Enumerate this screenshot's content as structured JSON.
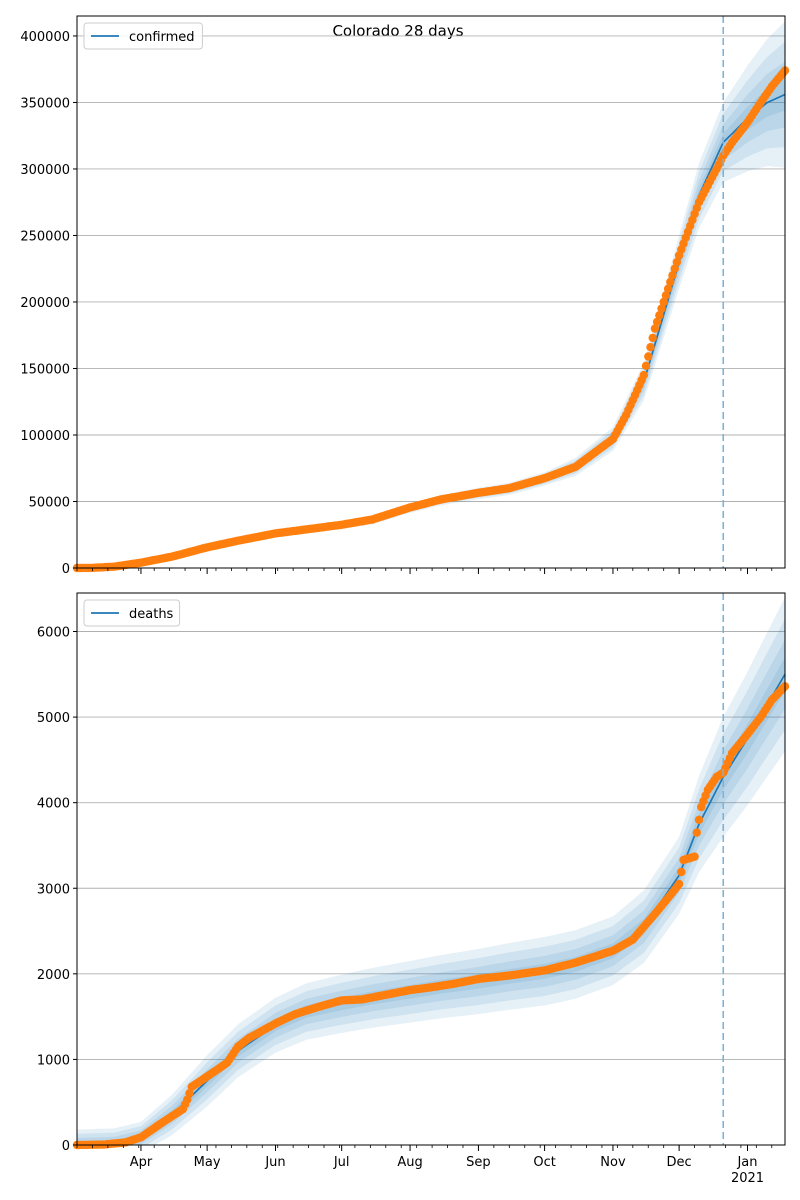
{
  "title": "Colorado 28 days",
  "colors": {
    "model_line": "#1f77b4",
    "observed_points": "#ff7f0e",
    "band": "#1f77b4",
    "forecast_marker": "#7fb3d5",
    "grid": "#b0b0b0"
  },
  "x_axis": {
    "month_labels": [
      "Apr",
      "May",
      "Jun",
      "Jul",
      "Aug",
      "Sep",
      "Oct",
      "Nov",
      "Dec",
      "Jan"
    ],
    "year_label": "2021"
  },
  "chart_data": [
    {
      "type": "line",
      "legend": "confirmed",
      "legend_position": "top-left",
      "grid": "y",
      "xlim": [
        "2020-03-03",
        "2021-01-18"
      ],
      "ylim": [
        0,
        415000
      ],
      "yticks": [
        0,
        50000,
        100000,
        150000,
        200000,
        250000,
        300000,
        350000,
        400000
      ],
      "forecast_start": "2020-12-21",
      "model_points": [
        [
          "2020-03-03",
          0
        ],
        [
          "2020-03-20",
          800
        ],
        [
          "2020-04-01",
          4500
        ],
        [
          "2020-04-15",
          9000
        ],
        [
          "2020-05-01",
          16000
        ],
        [
          "2020-05-15",
          21000
        ],
        [
          "2020-06-01",
          26000
        ],
        [
          "2020-06-15",
          29000
        ],
        [
          "2020-07-01",
          32500
        ],
        [
          "2020-07-15",
          36000
        ],
        [
          "2020-08-01",
          45000
        ],
        [
          "2020-08-15",
          51000
        ],
        [
          "2020-09-01",
          56000
        ],
        [
          "2020-09-15",
          59500
        ],
        [
          "2020-10-01",
          67000
        ],
        [
          "2020-10-15",
          76000
        ],
        [
          "2020-11-01",
          97000
        ],
        [
          "2020-11-15",
          140000
        ],
        [
          "2020-12-01",
          230000
        ],
        [
          "2020-12-10",
          280000
        ],
        [
          "2020-12-21",
          320000
        ],
        [
          "2021-01-01",
          338000
        ],
        [
          "2021-01-10",
          350000
        ],
        [
          "2021-01-18",
          356000
        ]
      ],
      "band_spread": [
        [
          "2020-03-03",
          600
        ],
        [
          "2020-04-01",
          1500
        ],
        [
          "2020-06-01",
          2500
        ],
        [
          "2020-08-01",
          3500
        ],
        [
          "2020-10-01",
          5000
        ],
        [
          "2020-11-01",
          9000
        ],
        [
          "2020-12-01",
          20000
        ],
        [
          "2020-12-21",
          30000
        ],
        [
          "2021-01-18",
          55000
        ]
      ],
      "observed": [
        [
          "2020-03-03",
          0
        ],
        [
          "2020-03-10",
          100
        ],
        [
          "2020-03-20",
          1000
        ],
        [
          "2020-04-01",
          4000
        ],
        [
          "2020-04-15",
          8500
        ],
        [
          "2020-05-01",
          15500
        ],
        [
          "2020-05-15",
          20500
        ],
        [
          "2020-06-01",
          26000
        ],
        [
          "2020-06-15",
          29000
        ],
        [
          "2020-07-01",
          32500
        ],
        [
          "2020-07-15",
          36500
        ],
        [
          "2020-08-01",
          45500
        ],
        [
          "2020-08-15",
          51500
        ],
        [
          "2020-09-01",
          56500
        ],
        [
          "2020-09-15",
          60000
        ],
        [
          "2020-10-01",
          67500
        ],
        [
          "2020-10-15",
          76000
        ],
        [
          "2020-11-01",
          97000
        ],
        [
          "2020-11-07",
          115000
        ],
        [
          "2020-11-15",
          145000
        ],
        [
          "2020-11-20",
          180000
        ],
        [
          "2020-11-25",
          205000
        ],
        [
          "2020-12-01",
          235000
        ],
        [
          "2020-12-10",
          275000
        ],
        [
          "2020-12-18",
          300000
        ],
        [
          "2020-12-21",
          310000
        ],
        [
          "2020-12-25",
          320000
        ],
        [
          "2021-01-01",
          335000
        ],
        [
          "2021-01-07",
          350000
        ],
        [
          "2021-01-12",
          362000
        ],
        [
          "2021-01-18",
          374000
        ]
      ]
    },
    {
      "type": "line",
      "legend": "deaths",
      "legend_position": "top-left",
      "grid": "y",
      "xlim": [
        "2020-03-03",
        "2021-01-18"
      ],
      "ylim": [
        0,
        6450
      ],
      "yticks": [
        0,
        1000,
        2000,
        3000,
        4000,
        5000,
        6000
      ],
      "forecast_start": "2020-12-21",
      "model_points": [
        [
          "2020-03-03",
          0
        ],
        [
          "2020-03-20",
          15
        ],
        [
          "2020-04-01",
          90
        ],
        [
          "2020-04-15",
          350
        ],
        [
          "2020-05-01",
          750
        ],
        [
          "2020-05-15",
          1100
        ],
        [
          "2020-06-01",
          1400
        ],
        [
          "2020-06-15",
          1560
        ],
        [
          "2020-07-01",
          1650
        ],
        [
          "2020-07-15",
          1720
        ],
        [
          "2020-08-01",
          1790
        ],
        [
          "2020-08-15",
          1850
        ],
        [
          "2020-09-01",
          1910
        ],
        [
          "2020-09-15",
          1970
        ],
        [
          "2020-10-01",
          2030
        ],
        [
          "2020-10-15",
          2110
        ],
        [
          "2020-11-01",
          2270
        ],
        [
          "2020-11-15",
          2550
        ],
        [
          "2020-12-01",
          3150
        ],
        [
          "2020-12-10",
          3750
        ],
        [
          "2020-12-21",
          4300
        ],
        [
          "2021-01-01",
          4750
        ],
        [
          "2021-01-10",
          5150
        ],
        [
          "2021-01-18",
          5500
        ]
      ],
      "band_spread": [
        [
          "2020-03-03",
          180
        ],
        [
          "2020-04-01",
          180
        ],
        [
          "2020-05-01",
          300
        ],
        [
          "2020-06-15",
          330
        ],
        [
          "2020-08-01",
          360
        ],
        [
          "2020-10-01",
          400
        ],
        [
          "2020-11-01",
          400
        ],
        [
          "2020-12-01",
          450
        ],
        [
          "2020-12-21",
          700
        ],
        [
          "2021-01-18",
          900
        ]
      ],
      "observed": [
        [
          "2020-03-03",
          0
        ],
        [
          "2020-03-15",
          5
        ],
        [
          "2020-03-25",
          30
        ],
        [
          "2020-04-01",
          90
        ],
        [
          "2020-04-10",
          250
        ],
        [
          "2020-04-20",
          420
        ],
        [
          "2020-04-22",
          530
        ],
        [
          "2020-04-24",
          680
        ],
        [
          "2020-05-01",
          800
        ],
        [
          "2020-05-10",
          960
        ],
        [
          "2020-05-15",
          1150
        ],
        [
          "2020-05-20",
          1250
        ],
        [
          "2020-06-01",
          1420
        ],
        [
          "2020-06-10",
          1530
        ],
        [
          "2020-06-20",
          1610
        ],
        [
          "2020-07-01",
          1690
        ],
        [
          "2020-07-10",
          1700
        ],
        [
          "2020-07-20",
          1750
        ],
        [
          "2020-08-01",
          1810
        ],
        [
          "2020-08-10",
          1840
        ],
        [
          "2020-08-20",
          1880
        ],
        [
          "2020-09-01",
          1940
        ],
        [
          "2020-09-15",
          1980
        ],
        [
          "2020-10-01",
          2040
        ],
        [
          "2020-10-15",
          2130
        ],
        [
          "2020-11-01",
          2270
        ],
        [
          "2020-11-10",
          2400
        ],
        [
          "2020-11-20",
          2700
        ],
        [
          "2020-11-28",
          2950
        ],
        [
          "2020-12-01",
          3050
        ],
        [
          "2020-12-03",
          3330
        ],
        [
          "2020-12-08",
          3370
        ],
        [
          "2020-12-09",
          3650
        ],
        [
          "2020-12-11",
          3950
        ],
        [
          "2020-12-14",
          4150
        ],
        [
          "2020-12-18",
          4300
        ],
        [
          "2020-12-21",
          4350
        ],
        [
          "2020-12-25",
          4580
        ],
        [
          "2021-01-01",
          4800
        ],
        [
          "2021-01-07",
          5000
        ],
        [
          "2021-01-12",
          5200
        ],
        [
          "2021-01-18",
          5360
        ]
      ]
    }
  ]
}
